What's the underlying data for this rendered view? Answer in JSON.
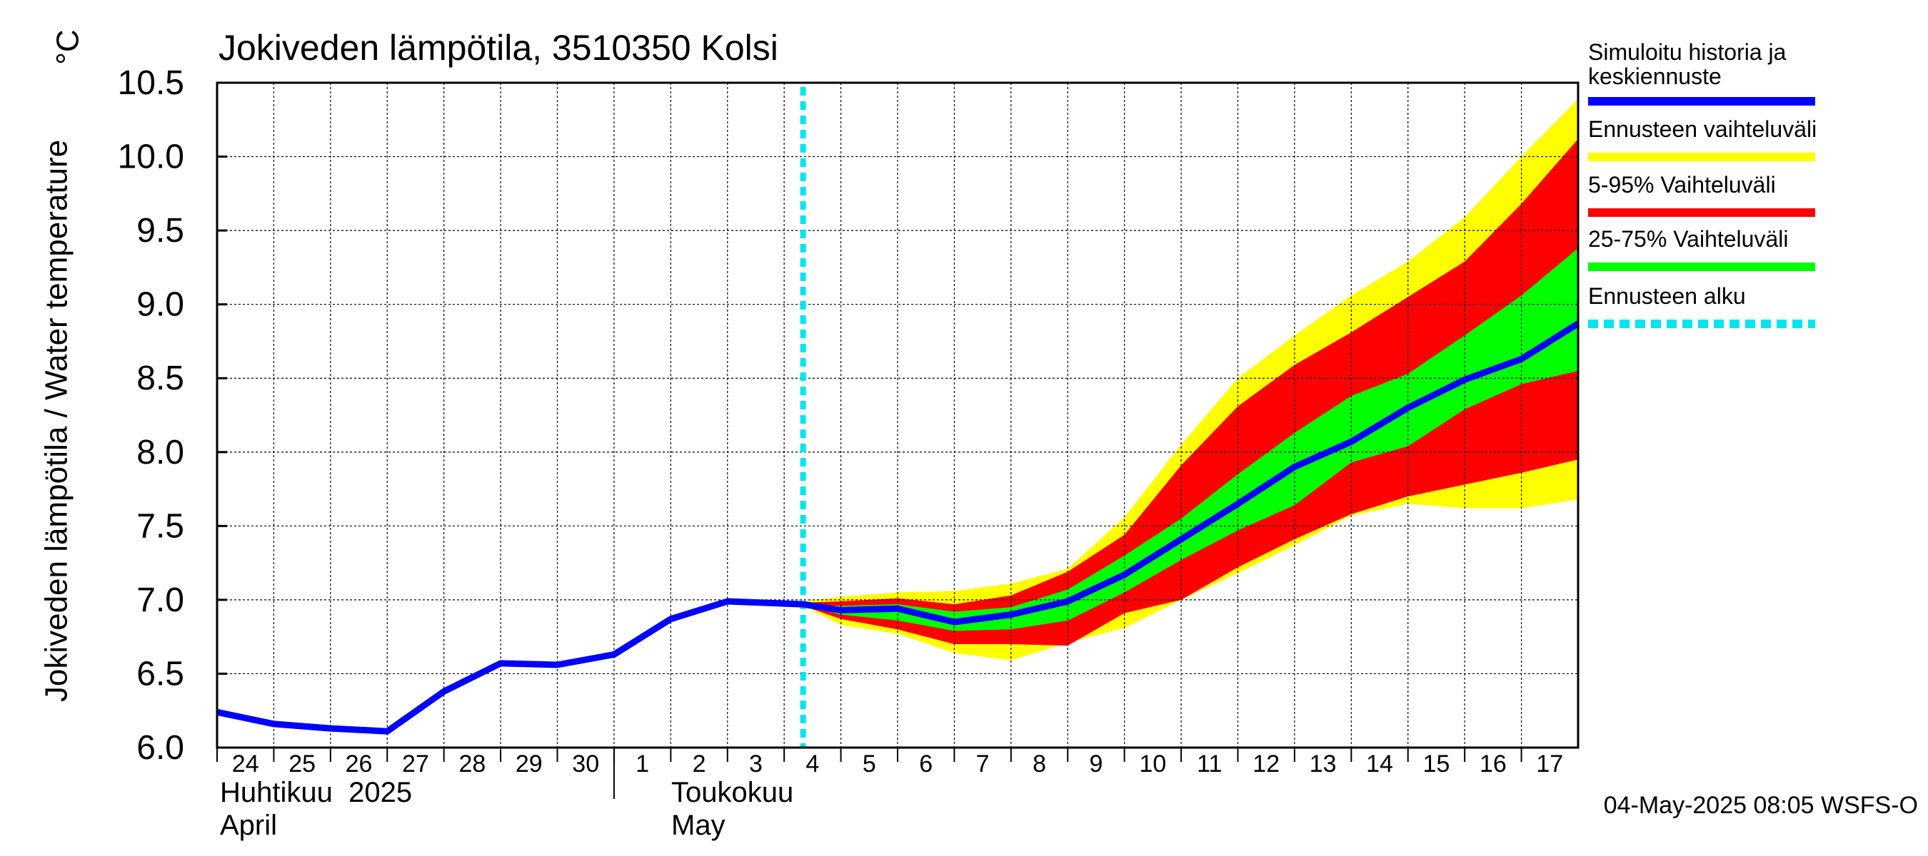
{
  "chart_data": {
    "type": "line",
    "title": "Jokiveden lämpötila, 3510350 Kolsi",
    "ylabel": "Jokiveden lämpötila / Water temperature",
    "yunit": "°C",
    "ylim": [
      6.0,
      10.5
    ],
    "yticks": [
      "6.0",
      "6.5",
      "7.0",
      "7.5",
      "8.0",
      "8.5",
      "9.0",
      "9.5",
      "10.0",
      "10.5"
    ],
    "xlim": [
      "2025-04-24",
      "2025-05-18"
    ],
    "xtick_labels": [
      "24",
      "25",
      "26",
      "27",
      "28",
      "29",
      "30",
      "1",
      "2",
      "3",
      "4",
      "5",
      "6",
      "7",
      "8",
      "9",
      "10",
      "11",
      "12",
      "13",
      "14",
      "15",
      "16",
      "17"
    ],
    "month_labels": [
      {
        "fi": "Huhtikuu  2025",
        "en": "April"
      },
      {
        "fi": "Toukokuu",
        "en": "May"
      }
    ],
    "grid": true,
    "legend_position": "right",
    "forecast_start": "2025-05-04 08:00",
    "series": [
      {
        "name": "Simuloitu historia ja keskiennuste",
        "color": "#0000ff",
        "points": [
          [
            "2025-04-24 00:00",
            6.24
          ],
          [
            "2025-04-25 00:00",
            6.16
          ],
          [
            "2025-04-26 00:00",
            6.13
          ],
          [
            "2025-04-27 00:00",
            6.11
          ],
          [
            "2025-04-28 00:00",
            6.38
          ],
          [
            "2025-04-29 00:00",
            6.57
          ],
          [
            "2025-04-30 00:00",
            6.56
          ],
          [
            "2025-05-01 00:00",
            6.63
          ],
          [
            "2025-05-02 00:00",
            6.87
          ],
          [
            "2025-05-03 00:00",
            6.99
          ],
          [
            "2025-05-04 08:00",
            6.97
          ],
          [
            "2025-05-05 00:00",
            6.93
          ],
          [
            "2025-05-06 00:00",
            6.94
          ],
          [
            "2025-05-07 00:00",
            6.85
          ],
          [
            "2025-05-08 00:00",
            6.9
          ],
          [
            "2025-05-09 00:00",
            6.99
          ],
          [
            "2025-05-10 00:00",
            7.17
          ],
          [
            "2025-05-11 00:00",
            7.41
          ],
          [
            "2025-05-12 00:00",
            7.65
          ],
          [
            "2025-05-13 00:00",
            7.9
          ],
          [
            "2025-05-14 00:00",
            8.07
          ],
          [
            "2025-05-15 00:00",
            8.3
          ],
          [
            "2025-05-16 00:00",
            8.49
          ],
          [
            "2025-05-17 00:00",
            8.63
          ],
          [
            "2025-05-18 00:00",
            8.87
          ]
        ]
      }
    ],
    "bands": [
      {
        "name": "Ennusteen vaihteluväli",
        "color": "#ffff00",
        "x": [
          "2025-05-04 08:00",
          "2025-05-05",
          "2025-05-06",
          "2025-05-07",
          "2025-05-08",
          "2025-05-09",
          "2025-05-10",
          "2025-05-11",
          "2025-05-12",
          "2025-05-13",
          "2025-05-14",
          "2025-05-15",
          "2025-05-16",
          "2025-05-17",
          "2025-05-18"
        ],
        "upper": [
          6.99,
          7.02,
          7.05,
          7.06,
          7.11,
          7.21,
          7.56,
          8.05,
          8.5,
          8.79,
          9.06,
          9.29,
          9.59,
          10.0,
          10.39
        ],
        "lower": [
          6.96,
          6.83,
          6.77,
          6.64,
          6.59,
          6.71,
          6.81,
          7.0,
          7.18,
          7.37,
          7.57,
          7.65,
          7.62,
          7.62,
          7.68
        ]
      },
      {
        "name": "5-95% Vaihteluväli",
        "color": "#ff0000",
        "x": [
          "2025-05-04 08:00",
          "2025-05-05",
          "2025-05-06",
          "2025-05-07",
          "2025-05-08",
          "2025-05-09",
          "2025-05-10",
          "2025-05-11",
          "2025-05-12",
          "2025-05-13",
          "2025-05-14",
          "2025-05-15",
          "2025-05-16",
          "2025-05-17",
          "2025-05-18"
        ],
        "upper": [
          6.98,
          6.99,
          7.01,
          6.97,
          7.03,
          7.19,
          7.44,
          7.91,
          8.31,
          8.59,
          8.81,
          9.05,
          9.29,
          9.68,
          10.12
        ],
        "lower": [
          6.96,
          6.87,
          6.8,
          6.7,
          6.7,
          6.69,
          6.91,
          7.0,
          7.22,
          7.41,
          7.58,
          7.7,
          7.78,
          7.86,
          7.95
        ]
      },
      {
        "name": "25-75% Vaihteluväli",
        "color": "#00ff00",
        "x": [
          "2025-05-04 08:00",
          "2025-05-05",
          "2025-05-06",
          "2025-05-07",
          "2025-05-08",
          "2025-05-09",
          "2025-05-10",
          "2025-05-11",
          "2025-05-12",
          "2025-05-13",
          "2025-05-14",
          "2025-05-15",
          "2025-05-16",
          "2025-05-17",
          "2025-05-18"
        ],
        "upper": [
          6.97,
          6.96,
          6.97,
          6.92,
          6.95,
          7.07,
          7.3,
          7.55,
          7.85,
          8.13,
          8.38,
          8.53,
          8.79,
          9.06,
          9.38
        ],
        "lower": [
          6.96,
          6.9,
          6.86,
          6.79,
          6.8,
          6.86,
          7.05,
          7.27,
          7.47,
          7.64,
          7.93,
          8.04,
          8.29,
          8.46,
          8.55
        ]
      }
    ],
    "forecast_marker": {
      "name": "Ennusteen alku",
      "color": "#00e5ee"
    },
    "timestamp": "04-May-2025 08:05 WSFS-O"
  }
}
